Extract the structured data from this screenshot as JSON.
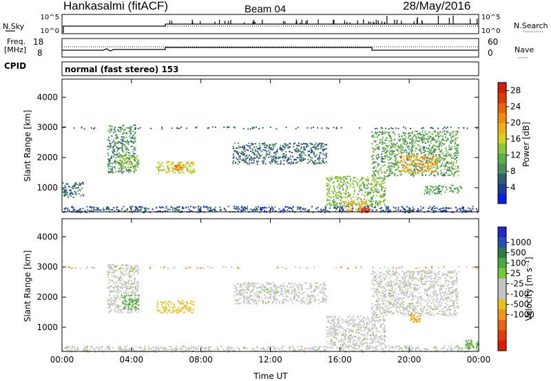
{
  "header": {
    "station": "Hankasalmi (fitACF)",
    "beam": "Beam 04",
    "date": "28/May/2016"
  },
  "top_panels": {
    "nsky_label": "N.Sky",
    "nsky_ticks": [
      "10^5",
      "10^0"
    ],
    "nsearch_label": "N.Search",
    "nsearch_ticks": [
      "10^5",
      "10^0"
    ],
    "freq_label_1": "Freq.",
    "freq_label_2": "[MHz]",
    "freq_ticks": [
      "18",
      "8"
    ],
    "nave_label": "Nave",
    "nave_ticks": [
      "60",
      "0"
    ],
    "cpid_label": "CPID",
    "cpid_text": "normal (fast stereo) 153"
  },
  "colors": {
    "power_scale": [
      "#0a1ee6",
      "#1e3c9a",
      "#2f5f6e",
      "#4c8c5a",
      "#5ab04a",
      "#8cc83c",
      "#d6d020",
      "#f0b018",
      "#f08c10",
      "#e8640a",
      "#dc3c06",
      "#d21e02"
    ],
    "velocity_scale": [
      "#1e28c8",
      "#2850b4",
      "#2f7a4c",
      "#4caa3c",
      "#76c83a",
      "#c4c4c4",
      "#c4c4c4",
      "#e8c020",
      "#f0961a",
      "#e86414",
      "#e03c0a",
      "#d71e00"
    ]
  },
  "chart_data": [
    {
      "type": "heatmap",
      "title": "Power",
      "xlabel": "",
      "ylabel": "Slant Range [km]",
      "x_ticks": [
        "00:00",
        "04:00",
        "08:00",
        "12:00",
        "16:00",
        "20:00",
        "00:00"
      ],
      "y_ticks": [
        "1000",
        "2000",
        "3000",
        "4000"
      ],
      "ylim": [
        200,
        4600
      ],
      "colorbar_label": "Power [dB]",
      "colorbar_ticks": [
        "4",
        "8",
        "12",
        "16",
        "20",
        "24",
        "28"
      ],
      "colorbar_range": [
        0,
        30
      ],
      "echo_regions": [
        {
          "t0": 0.0,
          "t1": 24.0,
          "r0": 200,
          "r1": 400,
          "level": 4
        },
        {
          "t0": 0.0,
          "t1": 1.2,
          "r0": 700,
          "r1": 1200,
          "level": 6
        },
        {
          "t0": 2.6,
          "t1": 4.2,
          "r0": 1500,
          "r1": 3100,
          "level": 8
        },
        {
          "t0": 3.2,
          "t1": 4.4,
          "r0": 1600,
          "r1": 2100,
          "level": 14
        },
        {
          "t0": 5.4,
          "t1": 7.6,
          "r0": 1500,
          "r1": 1900,
          "level": 16
        },
        {
          "t0": 6.3,
          "t1": 7.0,
          "r0": 1600,
          "r1": 1800,
          "level": 22
        },
        {
          "t0": 9.8,
          "t1": 15.2,
          "r0": 1800,
          "r1": 2500,
          "level": 6
        },
        {
          "t0": 15.2,
          "t1": 18.6,
          "r0": 400,
          "r1": 1400,
          "level": 12
        },
        {
          "t0": 16.2,
          "t1": 17.6,
          "r0": 200,
          "r1": 600,
          "level": 20
        },
        {
          "t0": 17.2,
          "t1": 17.7,
          "r0": 200,
          "r1": 320,
          "level": 28
        },
        {
          "t0": 17.8,
          "t1": 22.8,
          "r0": 1400,
          "r1": 2900,
          "level": 10
        },
        {
          "t0": 19.4,
          "t1": 21.6,
          "r0": 1500,
          "r1": 2100,
          "level": 20
        },
        {
          "t0": 20.8,
          "t1": 23.0,
          "r0": 800,
          "r1": 1100,
          "level": 10
        }
      ]
    },
    {
      "type": "heatmap",
      "title": "Velocity",
      "xlabel": "Time UT",
      "ylabel": "Slant Range [km]",
      "x_ticks": [
        "00:00",
        "04:00",
        "08:00",
        "12:00",
        "16:00",
        "20:00",
        "00:00"
      ],
      "y_ticks": [
        "1000",
        "2000",
        "3000",
        "4000"
      ],
      "ylim": [
        200,
        4600
      ],
      "colorbar_label": "Velocity [m s⁻¹]",
      "colorbar_ticks": [
        "1000",
        "500",
        "100",
        "25",
        "-25",
        "-100",
        "-500",
        "-1000"
      ],
      "echo_regions": [
        {
          "t0": 0.0,
          "t1": 24.0,
          "r0": 200,
          "r1": 400,
          "vel": 0
        },
        {
          "t0": 2.6,
          "t1": 4.4,
          "r0": 1500,
          "r1": 3100,
          "vel": 0
        },
        {
          "t0": 3.4,
          "t1": 4.4,
          "r0": 1600,
          "r1": 2100,
          "vel": 300
        },
        {
          "t0": 5.4,
          "t1": 7.6,
          "r0": 1500,
          "r1": 1900,
          "vel": -150
        },
        {
          "t0": 9.8,
          "t1": 15.2,
          "r0": 1800,
          "r1": 2500,
          "vel": 0
        },
        {
          "t0": 15.2,
          "t1": 18.6,
          "r0": 400,
          "r1": 1400,
          "vel": 0
        },
        {
          "t0": 17.8,
          "t1": 22.8,
          "r0": 1400,
          "r1": 2900,
          "vel": 0
        },
        {
          "t0": 20.0,
          "t1": 20.6,
          "r0": 1200,
          "r1": 1500,
          "vel": -500
        },
        {
          "t0": 23.2,
          "t1": 24.0,
          "r0": 300,
          "r1": 600,
          "vel": 120
        }
      ]
    }
  ]
}
